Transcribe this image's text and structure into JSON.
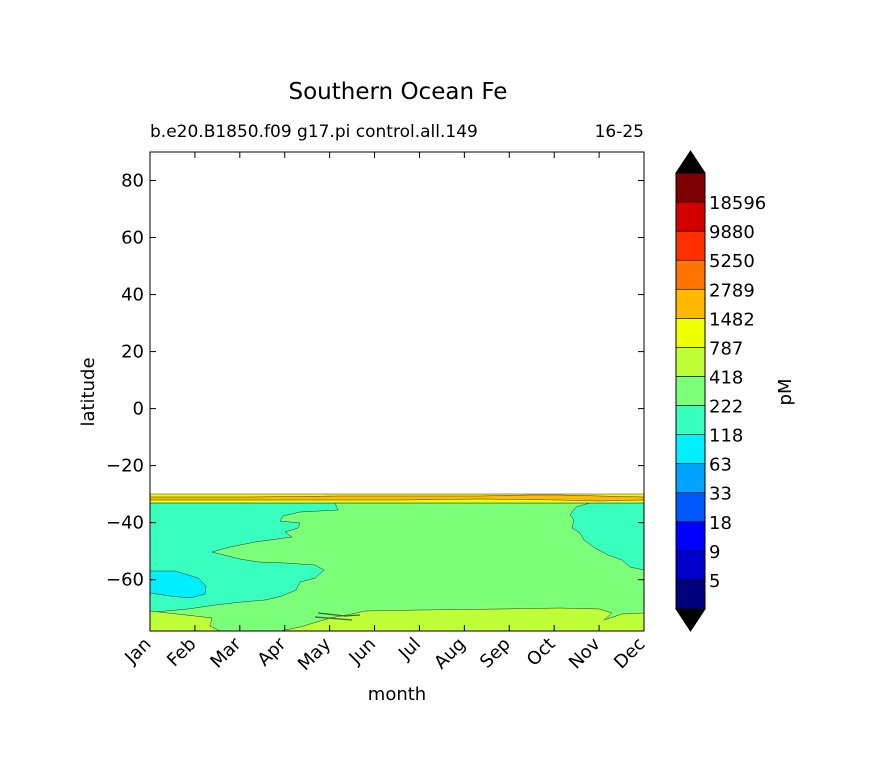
{
  "chart_data": {
    "type": "heatmap",
    "subtype": "filled-contour",
    "title": "Southern Ocean Fe",
    "subtitle_left": "b.e20.B1850.f09 g17.pi control.all.149",
    "subtitle_right": "16-25",
    "xlabel": "month",
    "ylabel": "latitude",
    "x_categories": [
      "Jan",
      "Feb",
      "Mar",
      "Apr",
      "May",
      "Jun",
      "Jul",
      "Aug",
      "Sep",
      "Oct",
      "Nov",
      "Dec"
    ],
    "ylim": [
      -78,
      90
    ],
    "y_ticks": [
      80,
      60,
      40,
      20,
      0,
      -20,
      -40,
      -60
    ],
    "y_tick_labels": [
      "80",
      "60",
      "40",
      "20",
      "0",
      "−20",
      "−40",
      "−60"
    ],
    "data_region_lat": [
      -78,
      -31
    ],
    "colorbar": {
      "label": "pM",
      "levels": [
        "5",
        "9",
        "18",
        "33",
        "63",
        "118",
        "222",
        "418",
        "787",
        "1482",
        "2789",
        "5250",
        "9880",
        "18596"
      ],
      "colors": [
        "#00007f",
        "#0000cd",
        "#0000ff",
        "#0058ff",
        "#00a4ff",
        "#00f0ff",
        "#38ffbe",
        "#7cff79",
        "#beff38",
        "#f0ff00",
        "#ffb900",
        "#ff7300",
        "#ff3000",
        "#d40000",
        "#7f0000"
      ],
      "extend": "both",
      "extend_colors": {
        "min": "#000000",
        "max": "#000000"
      }
    },
    "bands": [
      {
        "level_index": 7,
        "color": "#7cff79",
        "lat": [
          -78,
          -34
        ]
      },
      {
        "level_index": 6,
        "color": "#38ffbe",
        "lat": [
          -78,
          -34
        ],
        "month_span": [
          "Jan",
          "May"
        ],
        "edge": "west"
      },
      {
        "level_index": 6,
        "color": "#38ffbe",
        "lat": [
          -62,
          -34
        ],
        "month_span": [
          "Oct",
          "Dec"
        ],
        "edge": "east"
      },
      {
        "level_index": 5,
        "color": "#00f0ff",
        "lat": [
          -66,
          -59
        ],
        "month_span": [
          "Jan",
          "Feb"
        ]
      },
      {
        "level_index": 8,
        "color": "#beff38",
        "lat": [
          -78,
          -71
        ],
        "month_span": [
          "Mar",
          "Dec"
        ]
      },
      {
        "level_index": 9,
        "color": "#f0ff00",
        "lat": [
          -34,
          -31
        ]
      },
      {
        "level_index": 10,
        "color": "#ffb900",
        "lat": [
          -33,
          -32
        ],
        "month_span": [
          "Jun",
          "Oct"
        ]
      }
    ]
  }
}
